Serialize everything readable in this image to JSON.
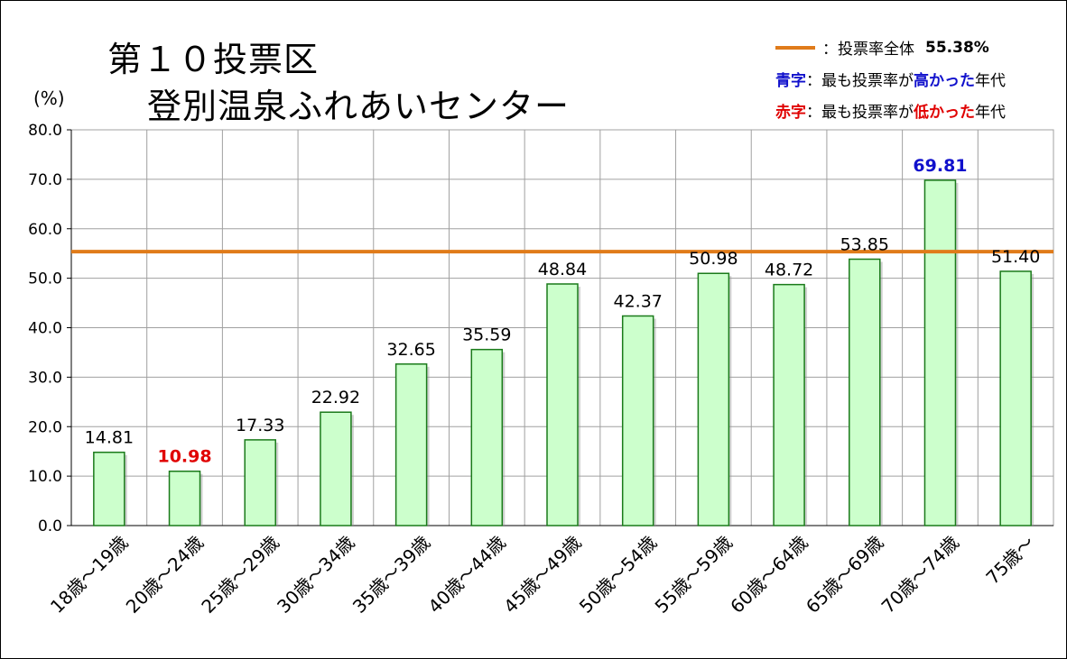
{
  "title": {
    "line1": "第１０投票区",
    "line2": "登別温泉ふれあいセンター"
  },
  "legend": {
    "overall_label": "：投票率全体",
    "overall_value": "55.38%",
    "blue_key": "青字",
    "blue_pre": "：最も投票率が",
    "blue_word": "高かった",
    "blue_post": "年代",
    "red_key": "赤字",
    "red_pre": "：最も投票率が",
    "red_word": "低かった",
    "red_post": "年代"
  },
  "colors": {
    "bar_fill": "#ccffcc",
    "bar_stroke": "#1a7a1a",
    "reference_line": "#e07b1a",
    "highest": "#1010cc",
    "lowest": "#e00000",
    "grid": "#a0a0a0",
    "text": "#000000"
  },
  "chart_data": {
    "type": "bar",
    "title": "第１０投票区 登別温泉ふれあいセンター",
    "ylabel": "(%)",
    "xlabel": "",
    "ylim": [
      0,
      80
    ],
    "yticks": [
      "0.0",
      "10.0",
      "20.0",
      "30.0",
      "40.0",
      "50.0",
      "60.0",
      "70.0",
      "80.0"
    ],
    "grid": true,
    "legend_position": "top-right",
    "categories": [
      "18歳～19歳",
      "20歳～24歳",
      "25歳～29歳",
      "30歳～34歳",
      "35歳～39歳",
      "40歳～44歳",
      "45歳～49歳",
      "50歳～54歳",
      "55歳～59歳",
      "60歳～64歳",
      "65歳～69歳",
      "70歳～74歳",
      "75歳～"
    ],
    "values": [
      14.81,
      10.98,
      17.33,
      22.92,
      32.65,
      35.59,
      48.84,
      42.37,
      50.98,
      48.72,
      53.85,
      69.81,
      51.4
    ],
    "value_labels": [
      "14.81",
      "10.98",
      "17.33",
      "22.92",
      "32.65",
      "35.59",
      "48.84",
      "42.37",
      "50.98",
      "48.72",
      "53.85",
      "69.81",
      "51.40"
    ],
    "reference_line": {
      "value": 55.38
    },
    "highest_index": 11,
    "lowest_index": 1
  }
}
